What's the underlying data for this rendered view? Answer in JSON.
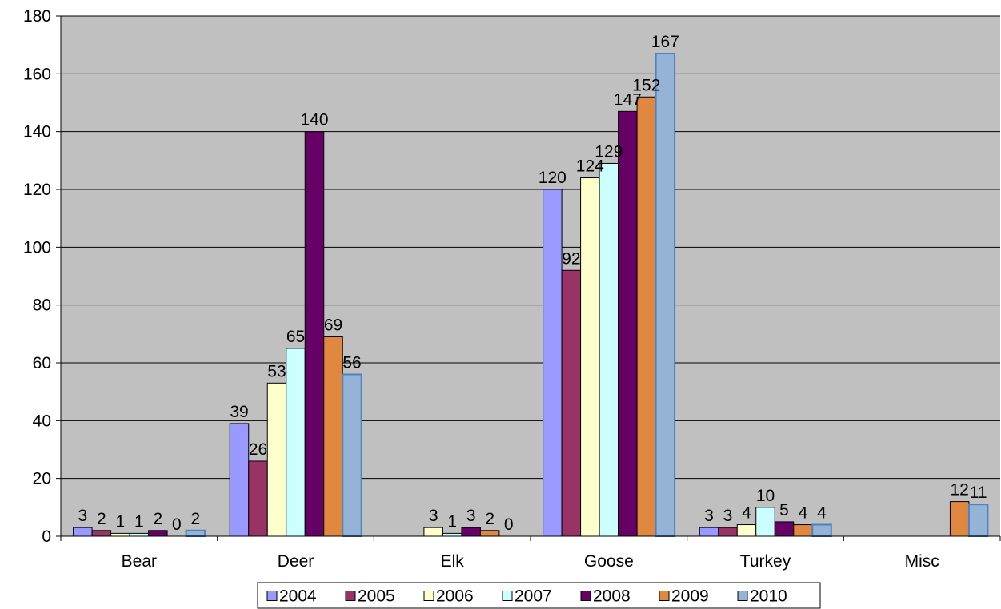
{
  "chart_data": {
    "type": "bar",
    "categories": [
      "Bear",
      "Deer",
      "Elk",
      "Goose",
      "Turkey",
      "Misc"
    ],
    "series": [
      {
        "name": "2004",
        "color": "#9999FF",
        "values": [
          3,
          39,
          null,
          120,
          3,
          null
        ]
      },
      {
        "name": "2005",
        "color": "#993366",
        "values": [
          2,
          26,
          null,
          92,
          3,
          null
        ]
      },
      {
        "name": "2006",
        "color": "#FFFFCC",
        "values": [
          1,
          53,
          3,
          124,
          4,
          null
        ]
      },
      {
        "name": "2007",
        "color": "#CCFFFF",
        "values": [
          1,
          65,
          1,
          129,
          10,
          null
        ]
      },
      {
        "name": "2008",
        "color": "#660066",
        "values": [
          2,
          140,
          3,
          147,
          5,
          null
        ]
      },
      {
        "name": "2009",
        "color": "#E0883F",
        "values": [
          0,
          69,
          2,
          152,
          4,
          12
        ]
      },
      {
        "name": "2010",
        "color": "#95B3D7",
        "values": [
          2,
          56,
          0,
          167,
          4,
          11
        ]
      }
    ],
    "ylim": [
      0,
      180
    ],
    "yticks": [
      0,
      20,
      40,
      60,
      80,
      100,
      120,
      140,
      160,
      180
    ],
    "grid": true,
    "plot_background": "#C0C0C0",
    "legend": "bottom"
  }
}
